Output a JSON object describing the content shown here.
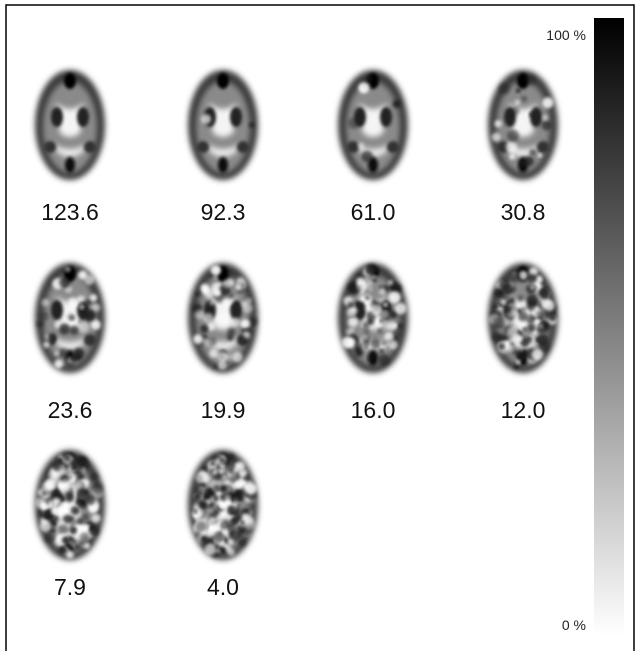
{
  "panels": [
    {
      "label": "123.6"
    },
    {
      "label": "92.3"
    },
    {
      "label": "61.0"
    },
    {
      "label": "30.8"
    },
    {
      "label": "23.6"
    },
    {
      "label": "19.9"
    },
    {
      "label": "16.0"
    },
    {
      "label": "12.0"
    },
    {
      "label": "7.9"
    },
    {
      "label": "4.0"
    }
  ],
  "colorbar": {
    "max_label": "100 %",
    "min_label": "0 %"
  }
}
